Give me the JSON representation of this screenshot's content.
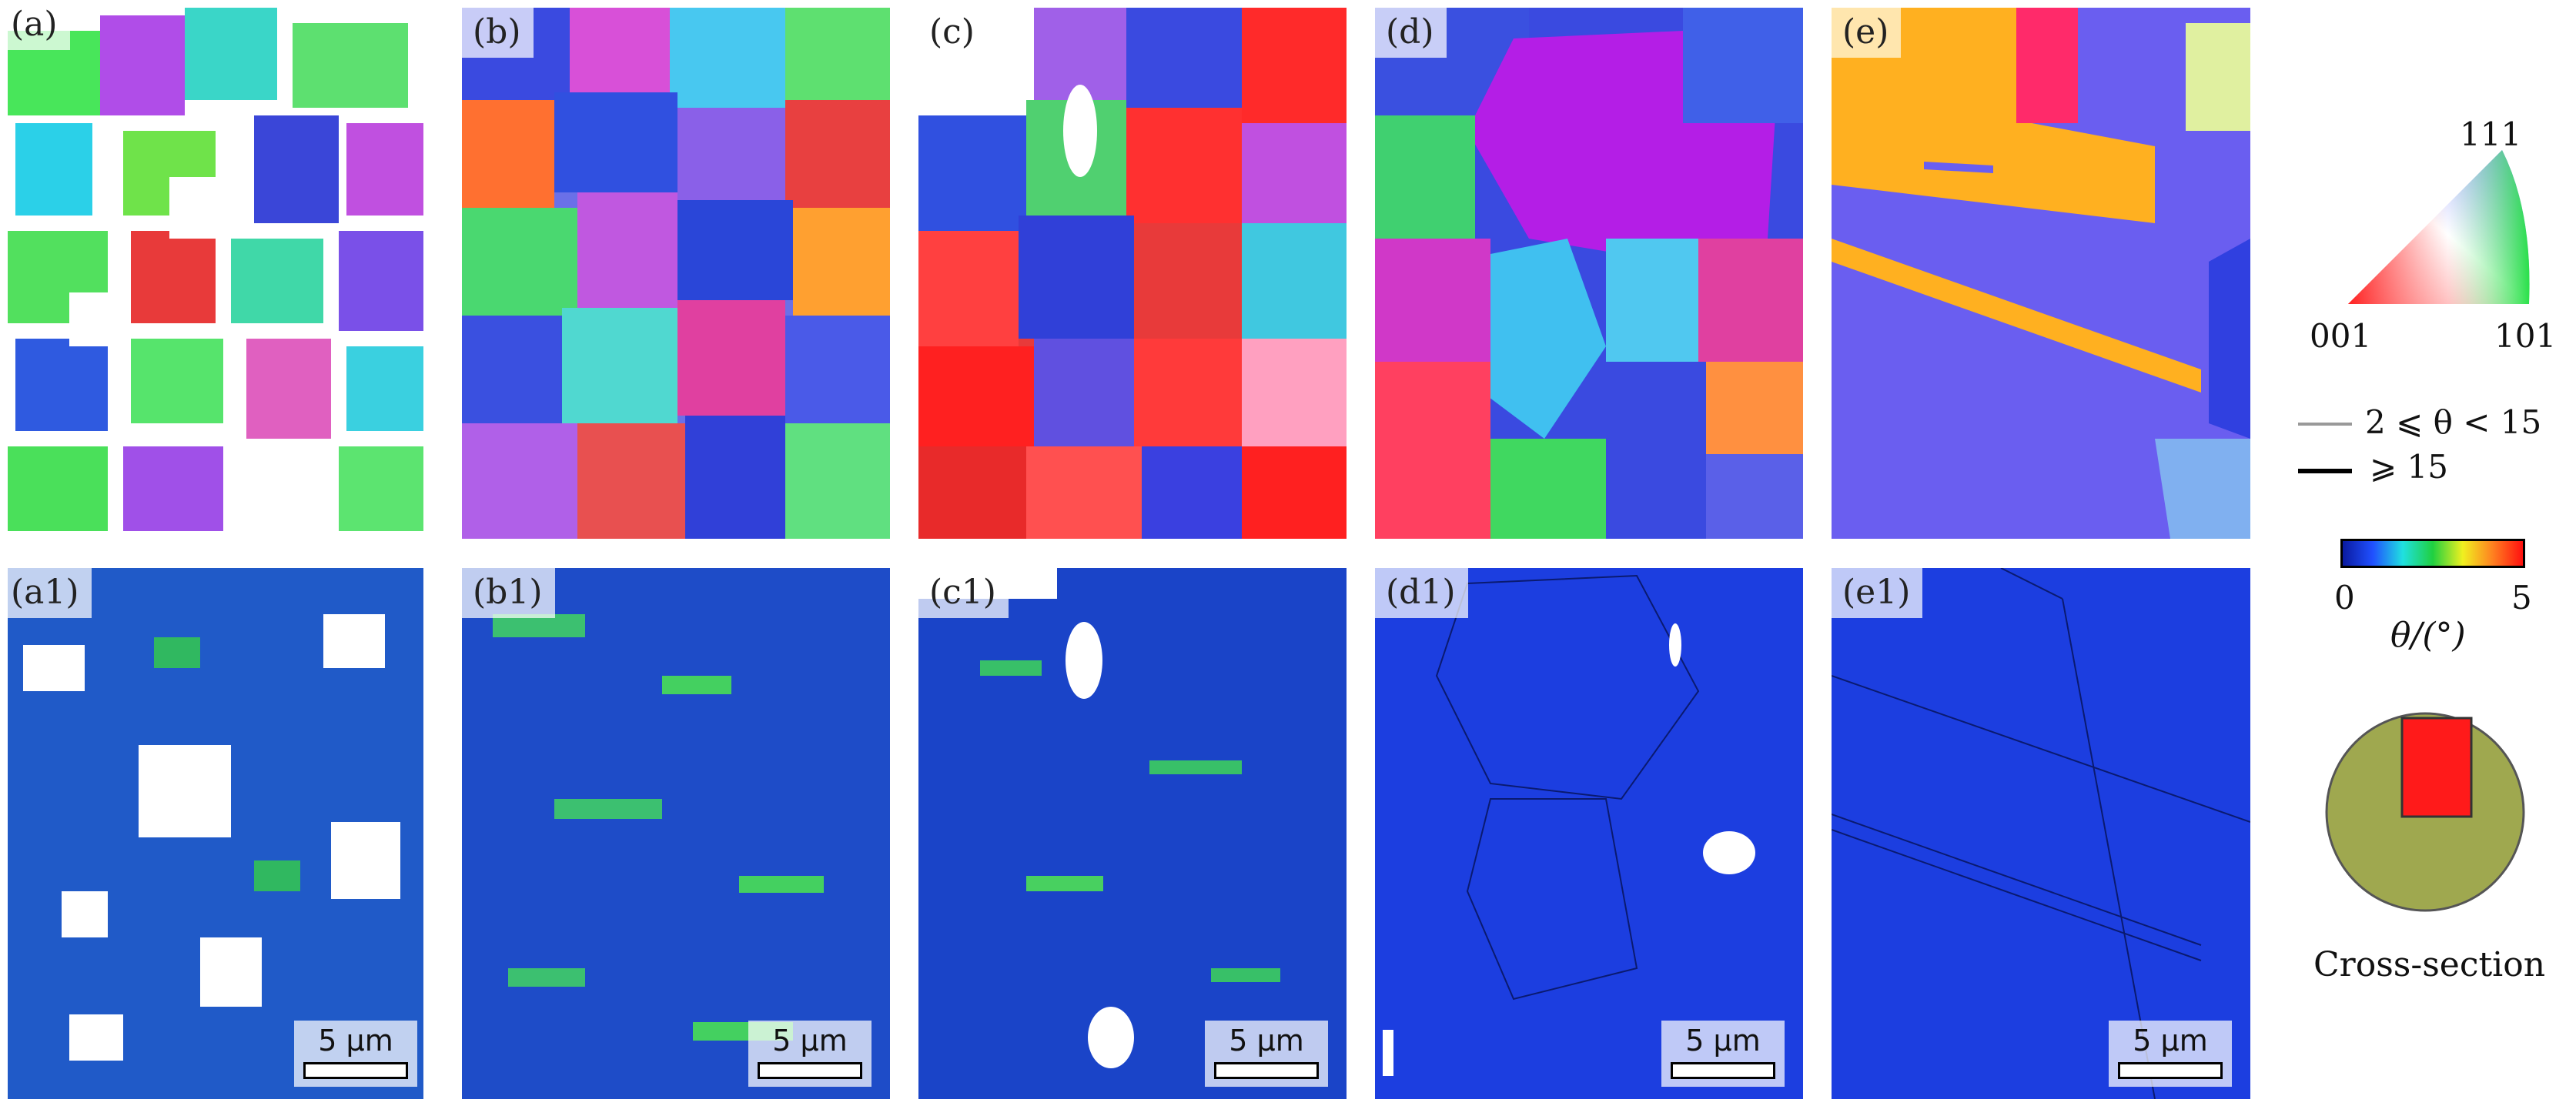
{
  "panels_top": [
    {
      "label": "(a)"
    },
    {
      "label": "(b)"
    },
    {
      "label": "(c)"
    },
    {
      "label": "(d)"
    },
    {
      "label": "(e)"
    }
  ],
  "panels_bottom": [
    {
      "label": "(a1)",
      "scale": "5 μm"
    },
    {
      "label": "(b1)",
      "scale": "5 μm"
    },
    {
      "label": "(c1)",
      "scale": "5 μm"
    },
    {
      "label": "(d1)",
      "scale": "5 μm"
    },
    {
      "label": "(e1)",
      "scale": "5 μm"
    }
  ],
  "ipf_legend": {
    "top": "111",
    "left": "001",
    "right": "101"
  },
  "boundary_legend": {
    "thin": "2 ⩽ θ < 15",
    "thick": "⩾ 15"
  },
  "kam_legend": {
    "min": "0",
    "max": "5",
    "label": "θ/(°)"
  },
  "cross_section_label": "Cross-section",
  "colors": {
    "red": "#ff2020",
    "green": "#20e040",
    "blue": "#2040e0",
    "kam_bg": "#1f3fe0",
    "disc": "#9fa84f",
    "rect": "#ff1a1a"
  }
}
